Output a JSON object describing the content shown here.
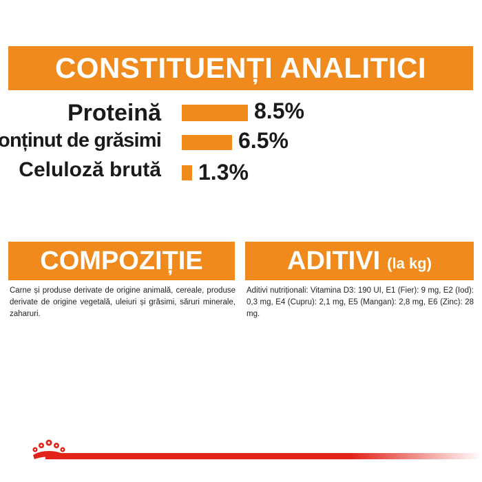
{
  "header": {
    "title": "CONSTITUENȚI ANALITICI"
  },
  "constituents": [
    {
      "label": "Proteină",
      "value": "8.5%",
      "percent": 8.5
    },
    {
      "label": "Conținut de grăsimi",
      "value": "6.5%",
      "percent": 6.5
    },
    {
      "label": "Celuloză brută",
      "value": "1.3%",
      "percent": 1.3
    }
  ],
  "composition": {
    "title": "COMPOZIȚIE",
    "text": "Carne și produse derivate de origine animală, cereale, produse derivate de origine vegetală, uleiuri și grăsimi, săruri minerale, zaharuri."
  },
  "additives": {
    "title": "ADITIVI",
    "subtitle": "(la kg)",
    "text": "Aditivi nutriționali: Vitamina D3: 190 UI, E1 (Fier): 9 mg, E2 (Iod): 0,3 mg, E4 (Cupru): 2,1 mg, E5 (Mangan): 2,8 mg, E6 (Zinc): 28 mg."
  },
  "colors": {
    "accent": "#f08a1c",
    "brand_red": "#e2231a"
  },
  "icons": {
    "brand_logo": "crown-icon"
  }
}
